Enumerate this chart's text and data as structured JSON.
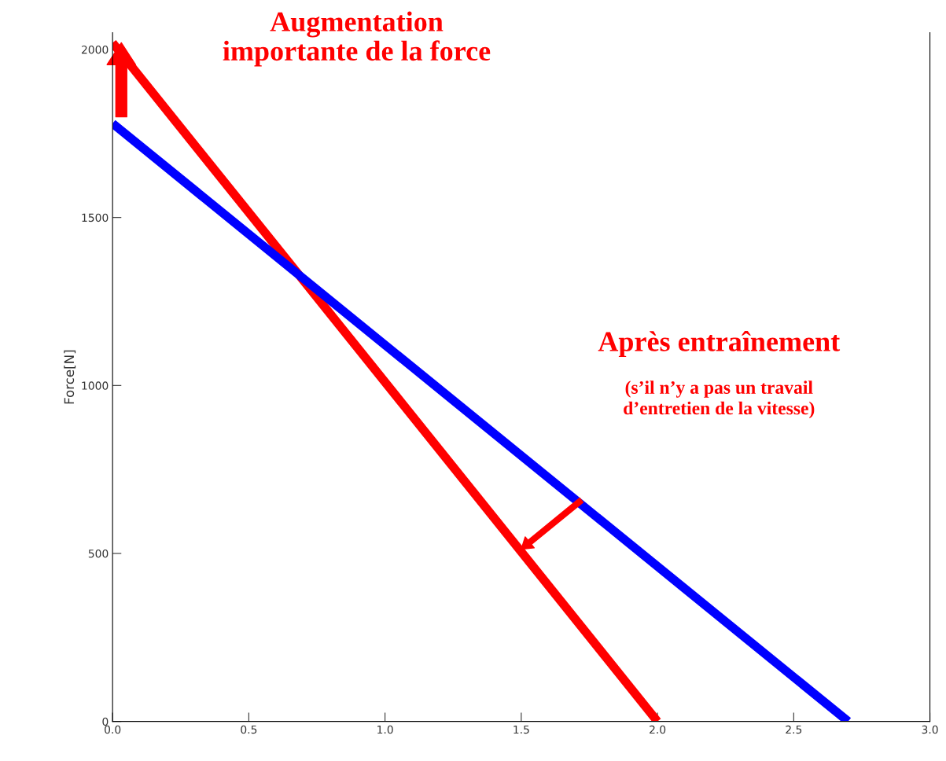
{
  "chart_data": {
    "type": "line",
    "ylabel": "Force[N]",
    "series": [
      {
        "color": "#ff0000",
        "x": [
          0,
          2.0
        ],
        "values": [
          2020,
          0
        ]
      },
      {
        "color": "#0000ff",
        "x": [
          0,
          2.7
        ],
        "values": [
          1780,
          0
        ]
      }
    ],
    "xlim": [
      0,
      3.0
    ],
    "ylim": [
      0,
      2050
    ],
    "xticks": [
      {
        "value": 0,
        "label": "0.0"
      },
      {
        "value": 0.5,
        "label": "0.5"
      },
      {
        "value": 1.0,
        "label": "1.0"
      },
      {
        "value": 1.5,
        "label": "1.5"
      },
      {
        "value": 2.0,
        "label": "2.0"
      },
      {
        "value": 2.5,
        "label": "2.5"
      },
      {
        "value": 3.0,
        "label": "3.0"
      }
    ],
    "yticks": [
      0,
      500,
      1000,
      1500,
      2000
    ],
    "grid": false,
    "legend": false,
    "marker": "none",
    "line_style": "solid",
    "annotations": [
      "Augmentation\nimportante de la force",
      "Après entraînement",
      "(s’il n’y a pas un travail\nd’entretien de la vitesse)"
    ]
  }
}
